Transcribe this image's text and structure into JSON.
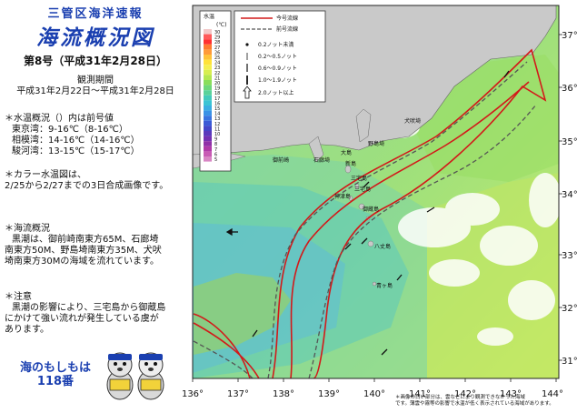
{
  "header": {
    "org": "三管区海洋速報",
    "title": "海流概況図",
    "issue": "第8号（平成31年2月28日）",
    "observation_label": "観測期間",
    "observation_range": "平成31年2月22日～平成31年2月28日"
  },
  "water_temp": {
    "heading": "＊水温概況（）内は前号値",
    "rows": [
      {
        "bay": "東京湾：",
        "value": "9-16℃（8-16℃）"
      },
      {
        "bay": "相模湾：",
        "value": "14-16℃（14-16℃）"
      },
      {
        "bay": "駿河湾：",
        "value": "13-15℃（15-17℃）"
      }
    ]
  },
  "color_note": {
    "line1": "＊カラー水温図は、",
    "line2": "2/25から2/27までの3日合成画像です。"
  },
  "current": {
    "heading": "＊海流概況",
    "line1": "黒潮は、御前崎南東方65M、石廊埼",
    "line2": "南東方50M、野島埼南東方35M、犬吠",
    "line3": "埼南東方30Mの海域を流れています。"
  },
  "caution": {
    "heading": "＊注意",
    "line1": "黒潮の影響により、三宅島から御蔵島",
    "line2": "にかけて強い流れが発生している虞が",
    "line3": "あります。"
  },
  "hotline": {
    "line1": "海のもしもは",
    "line2": "118番"
  },
  "legend": {
    "title": "水温",
    "unit": "(℃)",
    "current_label": "今号流線",
    "previous_label": "前号流線",
    "speed_rows": [
      "0.2ノット未満",
      "0.2～0.5ノット",
      "0.6～0.9ノット",
      "1.0～1.9ノット",
      "2.0ノット以上"
    ],
    "colorbar_ticks": [
      "30",
      "29",
      "28",
      "27",
      "26",
      "25",
      "24",
      "23",
      "22",
      "21",
      "20",
      "19",
      "18",
      "17",
      "16",
      "15",
      "14",
      "13",
      "12",
      "11",
      "10",
      "9",
      "8",
      "7",
      "6",
      "5"
    ],
    "colorbar_colors": [
      "#f2c8c8",
      "#ff5a5a",
      "#ff3030",
      "#ff7a30",
      "#ff9a3a",
      "#ffc23a",
      "#ffe23a",
      "#f4f050",
      "#d8ee50",
      "#b4e850",
      "#8ade5a",
      "#6ed87a",
      "#5ad29a",
      "#44cabc",
      "#3ac4d4",
      "#3aaee2",
      "#3a92e6",
      "#3a74e0",
      "#3a5ad6",
      "#4446c8",
      "#5a3abc",
      "#7432b2",
      "#9030a8",
      "#b03aa8",
      "#c85ab4",
      "#d886c4"
    ]
  },
  "axes": {
    "lon_ticks": [
      "136°",
      "137°",
      "138°",
      "139°",
      "140°",
      "141°",
      "142°",
      "143°",
      "144°"
    ],
    "lat_ticks": [
      "37°",
      "36°",
      "35°",
      "34°",
      "33°",
      "32°",
      "31°"
    ]
  },
  "places": [
    "三宅島",
    "御蔵島",
    "神津島",
    "新島",
    "大島",
    "三宅島",
    "八丈島",
    "青ヶ島",
    "犬吠埼",
    "石廊埼",
    "御前崎",
    "野島埼"
  ],
  "footnote": {
    "line1": "＊画像の白い部分は、雲などにより観測できなかった海域",
    "line2": "です。薄雲や霧等の影響で水温が低く表示されている海域があります。"
  }
}
